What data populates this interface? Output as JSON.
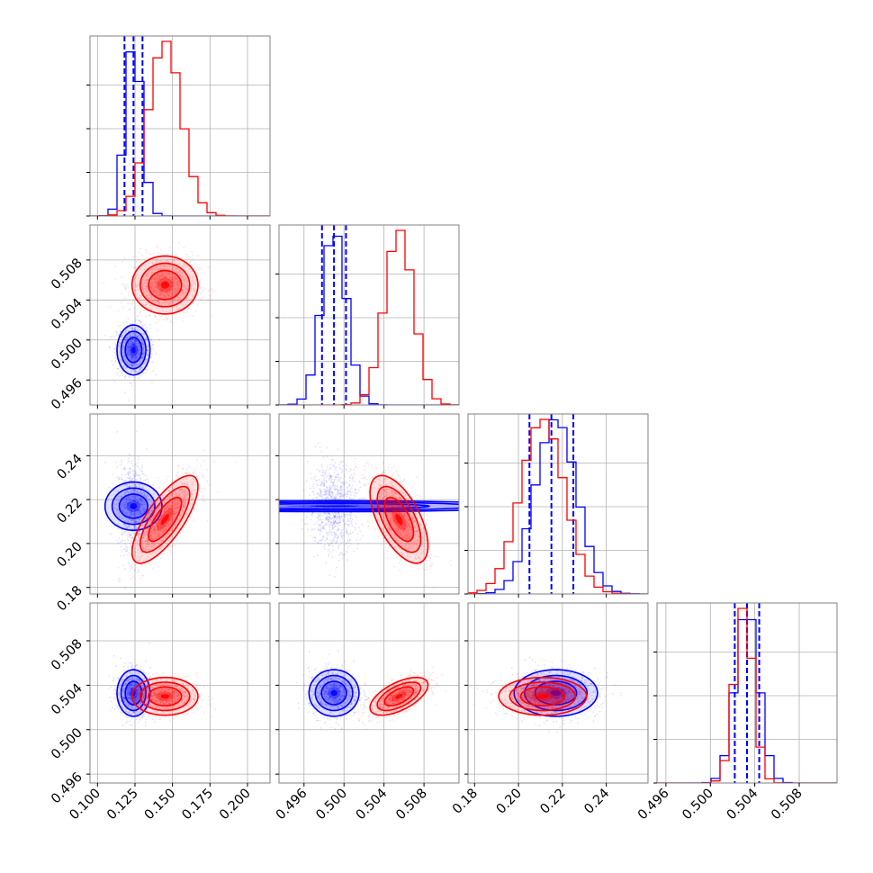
{
  "chart_data": {
    "type": "corner",
    "colors": {
      "blue": "#0000ff",
      "red": "#ff0000",
      "frame": "#808080",
      "grid": "#b0b0b0"
    },
    "grid": true,
    "series": [
      {
        "color": "#0000ff",
        "mean": [
          0.124,
          0.499,
          0.217,
          0.5033
        ],
        "std": [
          0.0055,
          0.00125,
          0.0095,
          0.00105
        ],
        "corr": [
          [
            1,
            0,
            0,
            0
          ],
          [
            0,
            1,
            0,
            0
          ],
          [
            0,
            0,
            1,
            0
          ],
          [
            0,
            0,
            0,
            1
          ]
        ],
        "quantiles": [
          [
            0.118,
            0.124,
            0.13
          ],
          [
            0.4978,
            0.499,
            0.5002
          ],
          [
            0.205,
            0.215,
            0.225
          ],
          [
            0.5022,
            0.5033,
            0.5044
          ]
        ]
      },
      {
        "color": "#ff0000",
        "mean": [
          0.145,
          0.5055,
          0.211,
          0.503
        ],
        "std": [
          0.011,
          0.00145,
          0.01,
          0.00085
        ],
        "corr": [
          [
            1,
            0,
            0.75,
            0
          ],
          [
            0,
            1,
            -0.6,
            0.6
          ],
          [
            0.75,
            -0.6,
            1,
            0
          ],
          [
            0,
            0.6,
            0,
            1
          ]
        ],
        "quantiles": null
      }
    ],
    "params": [
      {
        "range": [
          0.095,
          0.215
        ],
        "ticks": [
          "0.100",
          "0.125",
          "0.150",
          "0.175",
          "0.200"
        ],
        "tick_values": [
          0.1,
          0.125,
          0.15,
          0.175,
          0.2
        ]
      },
      {
        "range": [
          0.4935,
          0.5115
        ],
        "ticks": [
          "0.496",
          "0.500",
          "0.504",
          "0.508"
        ],
        "tick_values": [
          0.496,
          0.5,
          0.504,
          0.508
        ]
      },
      {
        "range": [
          0.177,
          0.259
        ],
        "ticks": [
          "0.18",
          "0.20",
          "0.22",
          "0.24"
        ],
        "tick_values": [
          0.18,
          0.2,
          0.22,
          0.24
        ]
      },
      {
        "range": [
          0.4952,
          0.5114
        ],
        "ticks": [
          "0.496",
          "0.500",
          "0.504",
          "0.508"
        ],
        "tick_values": [
          0.496,
          0.5,
          0.504,
          0.508
        ]
      }
    ]
  }
}
